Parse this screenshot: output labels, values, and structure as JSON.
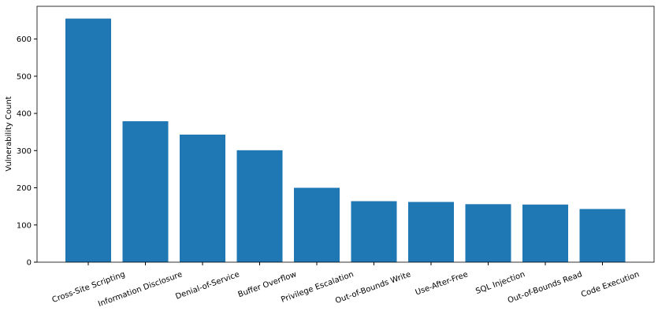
{
  "chart_data": {
    "type": "bar",
    "y_label": "Vulnerability Count",
    "categories": [
      "Cross-Site Scripting",
      "Information Disclosure",
      "Denial-of-Service",
      "Buffer Overflow",
      "Privilege Escalation",
      "Out-of-Bounds Write",
      "Use-After-Free",
      "SQL Injection",
      "Out-of-Bounds Read",
      "Code Execution"
    ],
    "values": [
      655,
      379,
      343,
      301,
      200,
      164,
      162,
      156,
      155,
      143
    ],
    "color": "#1f77b4",
    "ylim": [
      0,
      688
    ],
    "yticks": [
      0,
      100,
      200,
      300,
      400,
      500,
      600
    ],
    "grid": false
  }
}
